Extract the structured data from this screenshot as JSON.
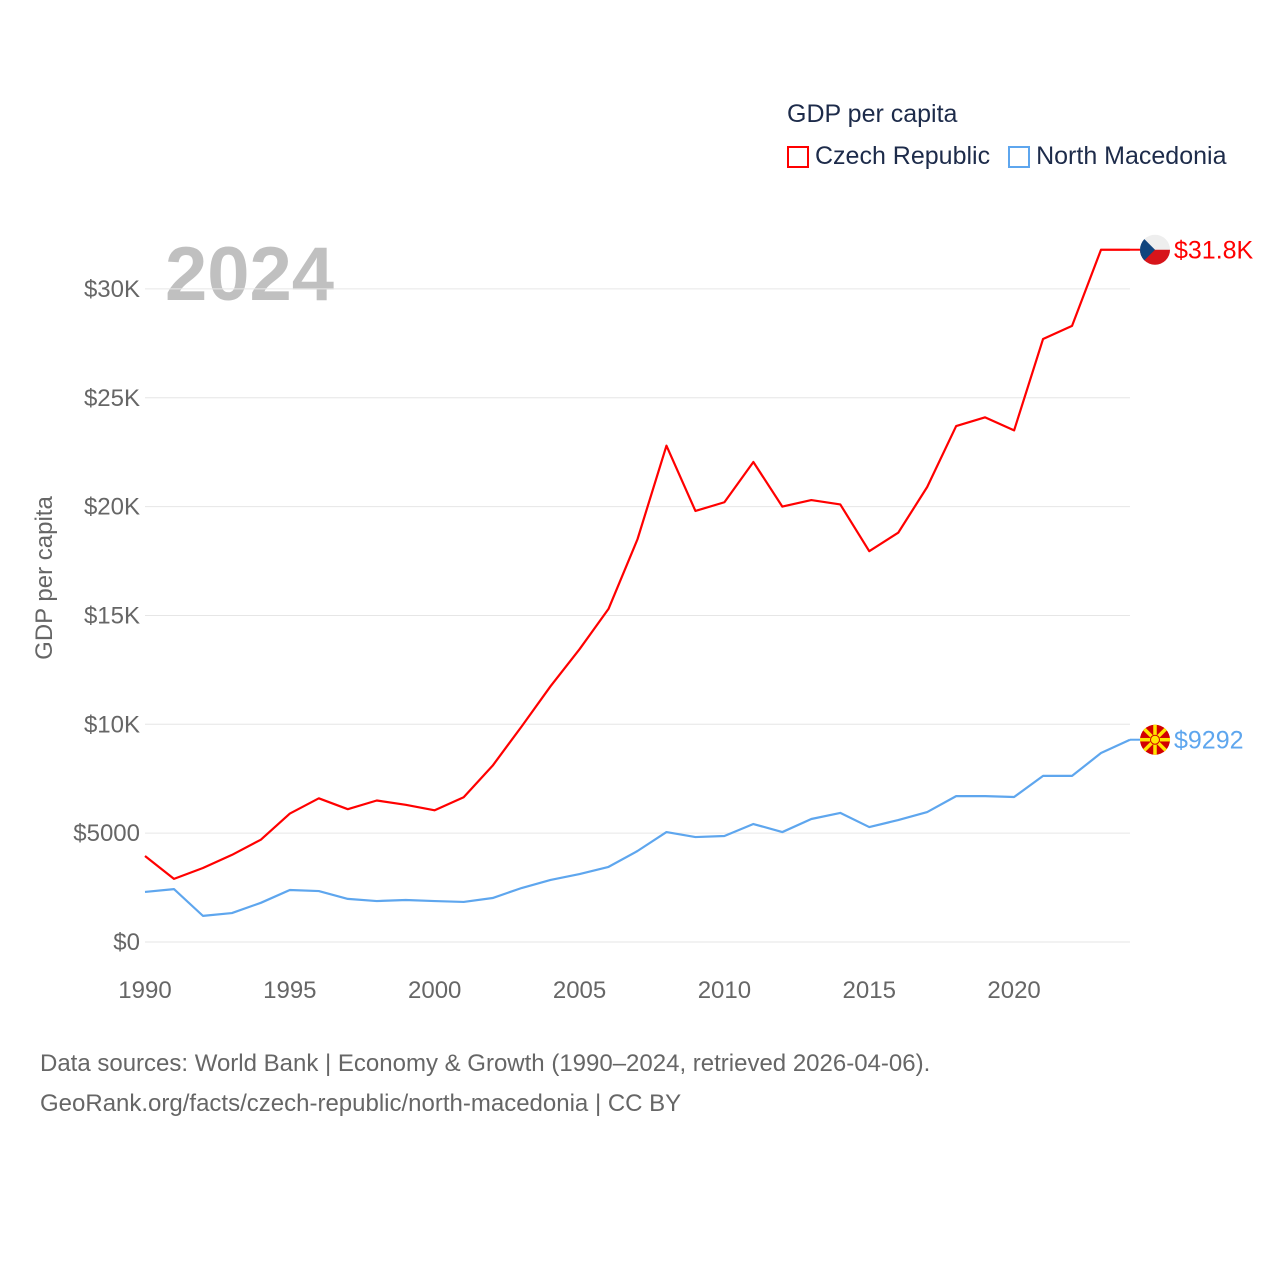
{
  "legend": {
    "title": "GDP per capita",
    "items": [
      {
        "label": "Czech Republic",
        "color": "#ff0000"
      },
      {
        "label": "North Macedonia",
        "color": "#5ea6ee"
      }
    ]
  },
  "year_label": "2024",
  "footer": {
    "line1": "Data sources: World Bank | Economy & Growth (1990–2024, retrieved 2026-04-06).",
    "line2": "GeoRank.org/facts/czech-republic/north-macedonia | CC BY"
  },
  "chart_data": {
    "type": "line",
    "title": "GDP per capita",
    "xlabel": "",
    "ylabel": "GDP per capita",
    "xlim": [
      1990,
      2024
    ],
    "ylim": [
      0,
      32000
    ],
    "x_ticks": [
      1990,
      1995,
      2000,
      2005,
      2010,
      2015,
      2020
    ],
    "y_ticks": [
      {
        "value": 0,
        "label": "$0"
      },
      {
        "value": 5000,
        "label": "$5000"
      },
      {
        "value": 10000,
        "label": "$10K"
      },
      {
        "value": 15000,
        "label": "$15K"
      },
      {
        "value": 20000,
        "label": "$20K"
      },
      {
        "value": 25000,
        "label": "$25K"
      },
      {
        "value": 30000,
        "label": "$30K"
      }
    ],
    "grid": true,
    "legend_position": "top-right",
    "x": [
      1990,
      1991,
      1992,
      1993,
      1994,
      1995,
      1996,
      1997,
      1998,
      1999,
      2000,
      2001,
      2002,
      2003,
      2004,
      2005,
      2006,
      2007,
      2008,
      2009,
      2010,
      2011,
      2012,
      2013,
      2014,
      2015,
      2016,
      2017,
      2018,
      2019,
      2020,
      2021,
      2022,
      2023,
      2024
    ],
    "series": [
      {
        "name": "Czech Republic",
        "color": "#ff0000",
        "end_label": "$31.8K",
        "values": [
          3950,
          2900,
          3400,
          4000,
          4700,
          5900,
          6600,
          6100,
          6500,
          6300,
          6050,
          6650,
          8100,
          9900,
          11750,
          13450,
          15300,
          18500,
          22800,
          19800,
          20200,
          22050,
          20000,
          20300,
          20100,
          17950,
          18800,
          20900,
          23700,
          24100,
          23500,
          27700,
          28300,
          31800,
          31800
        ]
      },
      {
        "name": "North Macedonia",
        "color": "#5ea6ee",
        "end_label": "$9292",
        "values": [
          2300,
          2430,
          1200,
          1330,
          1800,
          2390,
          2340,
          1980,
          1880,
          1930,
          1880,
          1840,
          2020,
          2480,
          2850,
          3120,
          3450,
          4180,
          5050,
          4820,
          4870,
          5420,
          5050,
          5650,
          5930,
          5280,
          5600,
          5970,
          6700,
          6700,
          6660,
          7630,
          7630,
          8680,
          9292
        ]
      }
    ]
  }
}
